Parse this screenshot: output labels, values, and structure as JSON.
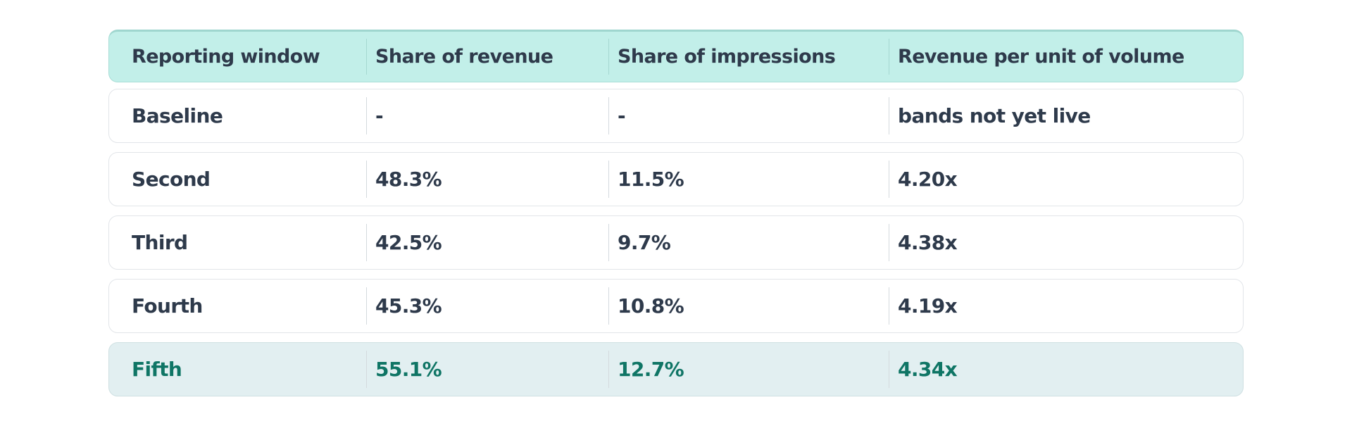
{
  "table": {
    "header": [
      "Reporting window",
      "Share of revenue",
      "Share of impressions",
      "Revenue per unit of volume"
    ],
    "rows": [
      [
        "Baseline",
        "-",
        "-",
        "bands not yet live"
      ],
      [
        "Second",
        "48.3%",
        "11.5%",
        "4.20x"
      ],
      [
        "Third",
        "42.5%",
        "9.7%",
        "4.38x"
      ],
      [
        "Fourth",
        "45.3%",
        "10.8%",
        "4.19x"
      ],
      [
        "Fifth",
        "55.1%",
        "12.7%",
        "4.34x"
      ]
    ]
  }
}
